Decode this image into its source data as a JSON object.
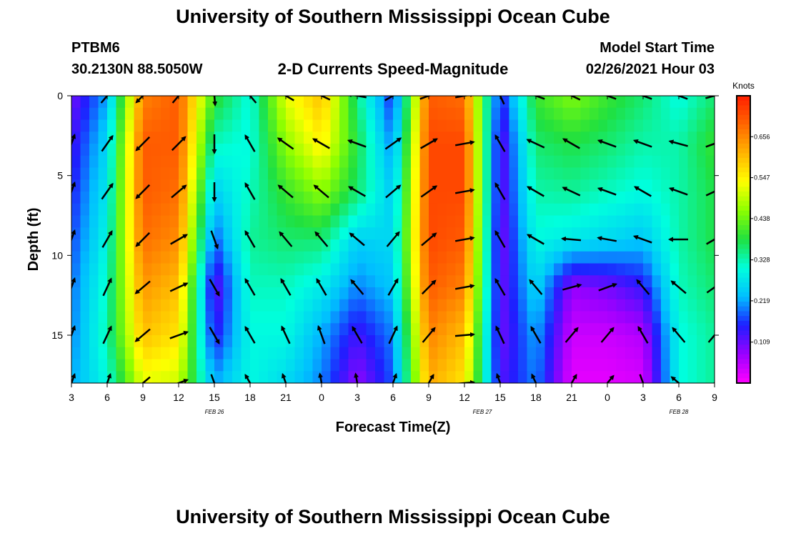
{
  "header": {
    "title": "University of Southern Mississippi Ocean Cube",
    "station_name": "PTBM6",
    "station_coords": "30.2130N 88.5050W",
    "subtitle": "2-D Currents Speed-Magnitude",
    "model_label": "Model Start Time",
    "model_datetime": "02/26/2021 Hour 03"
  },
  "footer": {
    "title": "University of Southern Mississippi Ocean Cube"
  },
  "chart_data": {
    "type": "heatmap",
    "title": "2-D Currents Speed-Magnitude",
    "xlabel": "Forecast Time(Z)",
    "ylabel": "Depth (ft)",
    "x_tick_labels": [
      "3",
      "6",
      "9",
      "12",
      "15",
      "18",
      "21",
      "0",
      "3",
      "6",
      "9",
      "12",
      "15",
      "18",
      "21",
      "0",
      "3",
      "6",
      "9"
    ],
    "x_date_labels": [
      {
        "label": "FEB 26",
        "hour_index": 4
      },
      {
        "label": "FEB 27",
        "hour_index": 11.5
      },
      {
        "label": "FEB 28",
        "hour_index": 17
      }
    ],
    "x_hours_from_start": [
      0,
      54
    ],
    "y_ticks": [
      0,
      5,
      10,
      15
    ],
    "ylim": [
      0,
      18
    ],
    "y_inverted": true,
    "colorbar": {
      "unit": "Knots",
      "tick_labels": [
        "0.109",
        "0.219",
        "0.328",
        "0.438",
        "0.547",
        "0.656"
      ],
      "range": [
        0,
        0.765
      ],
      "colors": [
        "#ff00ff",
        "#9b00ff",
        "#1e1eff",
        "#00bfff",
        "#00ffdd",
        "#20e040",
        "#8cff00",
        "#ffff00",
        "#ffb400",
        "#ff6600",
        "#ff1e00"
      ]
    },
    "time_columns_hours": [
      0,
      3,
      6,
      9,
      12,
      15,
      18,
      21,
      24,
      27,
      30,
      33,
      36,
      39,
      42,
      45,
      48,
      51,
      54
    ],
    "depth_rows_ft": [
      0,
      3,
      6,
      9,
      12,
      15,
      18
    ],
    "speed_knots": [
      [
        0.1,
        0.13,
        0.15,
        0.17,
        0.19,
        0.2,
        0.22
      ],
      [
        0.22,
        0.26,
        0.28,
        0.3,
        0.32,
        0.33,
        0.3
      ],
      [
        0.66,
        0.7,
        0.7,
        0.68,
        0.64,
        0.6,
        0.52
      ],
      [
        0.7,
        0.7,
        0.68,
        0.65,
        0.6,
        0.56,
        0.5
      ],
      [
        0.4,
        0.32,
        0.25,
        0.18,
        0.1,
        0.14,
        0.22
      ],
      [
        0.3,
        0.3,
        0.32,
        0.34,
        0.32,
        0.3,
        0.3
      ],
      [
        0.52,
        0.46,
        0.4,
        0.36,
        0.32,
        0.3,
        0.26
      ],
      [
        0.6,
        0.55,
        0.46,
        0.36,
        0.28,
        0.22,
        0.2
      ],
      [
        0.35,
        0.38,
        0.36,
        0.25,
        0.2,
        0.13,
        0.08
      ],
      [
        0.15,
        0.2,
        0.24,
        0.26,
        0.24,
        0.2,
        0.18
      ],
      [
        0.7,
        0.72,
        0.72,
        0.72,
        0.7,
        0.66,
        0.62
      ],
      [
        0.68,
        0.72,
        0.72,
        0.7,
        0.66,
        0.6,
        0.56
      ],
      [
        0.14,
        0.1,
        0.1,
        0.09,
        0.1,
        0.1,
        0.12
      ],
      [
        0.4,
        0.36,
        0.33,
        0.3,
        0.26,
        0.22,
        0.2
      ],
      [
        0.45,
        0.38,
        0.34,
        0.28,
        0.08,
        0.04,
        0.02
      ],
      [
        0.4,
        0.36,
        0.32,
        0.26,
        0.1,
        0.04,
        0.02
      ],
      [
        0.36,
        0.33,
        0.3,
        0.24,
        0.14,
        0.06,
        0.03
      ],
      [
        0.3,
        0.33,
        0.33,
        0.33,
        0.32,
        0.3,
        0.3
      ],
      [
        0.36,
        0.4,
        0.38,
        0.38,
        0.36,
        0.34,
        0.34
      ]
    ],
    "direction_deg": [
      [
        20,
        20,
        20,
        20,
        20,
        20,
        20
      ],
      [
        40,
        35,
        35,
        30,
        25,
        25,
        20
      ],
      [
        225,
        225,
        225,
        225,
        230,
        230,
        230
      ],
      [
        40,
        45,
        50,
        60,
        65,
        70,
        70
      ],
      [
        175,
        180,
        180,
        160,
        150,
        150,
        160
      ],
      [
        320,
        330,
        330,
        330,
        330,
        330,
        330
      ],
      [
        300,
        305,
        310,
        320,
        330,
        335,
        340
      ],
      [
        295,
        300,
        310,
        320,
        330,
        340,
        350
      ],
      [
        280,
        290,
        300,
        310,
        320,
        330,
        350
      ],
      [
        60,
        55,
        50,
        40,
        30,
        25,
        20
      ],
      [
        70,
        60,
        55,
        50,
        45,
        40,
        30
      ],
      [
        80,
        80,
        80,
        80,
        80,
        85,
        85
      ],
      [
        335,
        330,
        330,
        330,
        330,
        335,
        340
      ],
      [
        290,
        295,
        300,
        300,
        320,
        330,
        335
      ],
      [
        295,
        300,
        295,
        275,
        75,
        40,
        30
      ],
      [
        290,
        290,
        290,
        280,
        70,
        40,
        40
      ],
      [
        290,
        290,
        300,
        290,
        320,
        330,
        160
      ],
      [
        290,
        285,
        290,
        270,
        310,
        320,
        310
      ],
      [
        75,
        70,
        65,
        60,
        55,
        40,
        30
      ]
    ]
  }
}
